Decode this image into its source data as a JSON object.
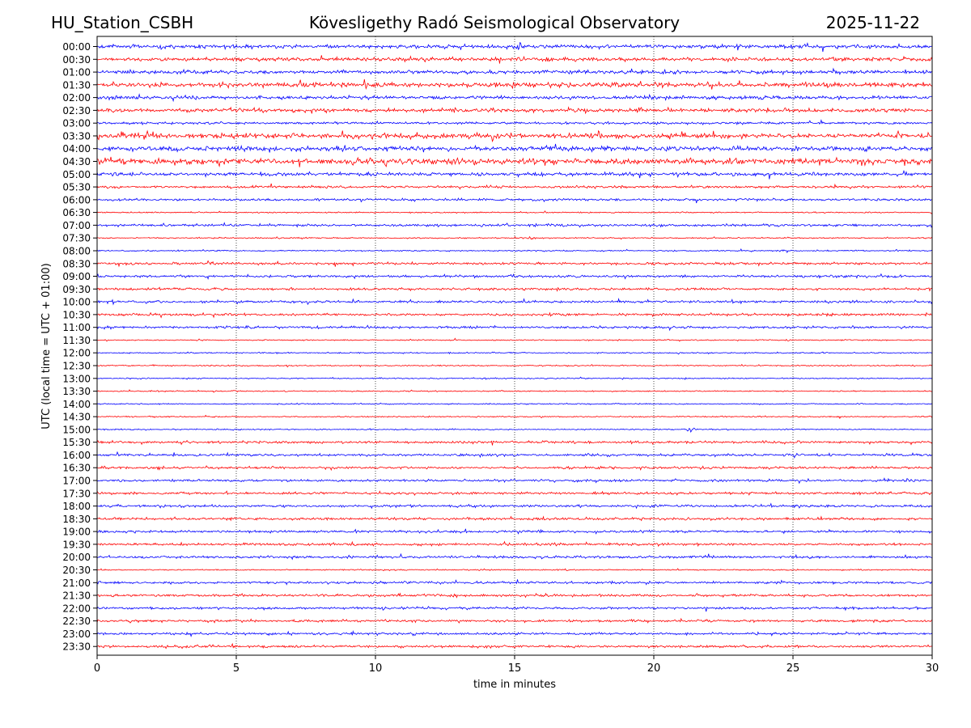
{
  "header": {
    "station": "HU_Station_CSBH",
    "observatory": "Kövesligethy Radó Seismological Observatory",
    "date": "2025-11-22"
  },
  "chart_data": {
    "type": "line",
    "title": "Kövesligethy Radó Seismological Observatory",
    "xlabel": "time in minutes",
    "ylabel": "UTC (local time = UTC + 01:00)",
    "xlim": [
      0,
      30
    ],
    "xticks": [
      0,
      5,
      10,
      15,
      20,
      25,
      30
    ],
    "xtick_labels": [
      "0",
      "5",
      "10",
      "15",
      "20",
      "25",
      "30"
    ],
    "grid": "vertical dotted lines at x = 5, 10, 15, 20, 25",
    "series_colors": [
      "#0000ff",
      "#ff0000"
    ],
    "trace_labels": [
      "00:00",
      "00:30",
      "01:00",
      "01:30",
      "02:00",
      "02:30",
      "03:00",
      "03:30",
      "04:00",
      "04:30",
      "05:00",
      "05:30",
      "06:00",
      "06:30",
      "07:00",
      "07:30",
      "08:00",
      "08:30",
      "09:00",
      "09:30",
      "10:00",
      "10:30",
      "11:00",
      "11:30",
      "12:00",
      "12:30",
      "13:00",
      "13:30",
      "14:00",
      "14:30",
      "15:00",
      "15:30",
      "16:00",
      "16:30",
      "17:00",
      "17:30",
      "18:00",
      "18:30",
      "19:00",
      "19:30",
      "20:00",
      "20:30",
      "21:00",
      "21:30",
      "22:00",
      "22:30",
      "23:00",
      "23:30"
    ],
    "noise_level": [
      3,
      3,
      3,
      4,
      3,
      3,
      2,
      4,
      4,
      5,
      3,
      2,
      2,
      1,
      2,
      1,
      1,
      2,
      2,
      2,
      2,
      2,
      2,
      1,
      1,
      1,
      1,
      1,
      1,
      1,
      1,
      2,
      2,
      2,
      2,
      2,
      2,
      2,
      2,
      2,
      2,
      1,
      2,
      2,
      2,
      2,
      2,
      2
    ],
    "events": [
      {
        "trace": "00:00",
        "minute": 2.7,
        "amp": 5
      },
      {
        "trace": "00:00",
        "minute": 15.2,
        "amp": 7
      },
      {
        "trace": "00:00",
        "minute": 23.1,
        "amp": 5
      },
      {
        "trace": "00:00",
        "minute": 27.8,
        "amp": 4
      },
      {
        "trace": "00:30",
        "minute": 11.3,
        "amp": 4
      },
      {
        "trace": "00:30",
        "minute": 17.2,
        "amp": 5
      },
      {
        "trace": "00:30",
        "minute": 19.0,
        "amp": 5
      },
      {
        "trace": "01:00",
        "minute": 14.5,
        "amp": 4
      },
      {
        "trace": "01:00",
        "minute": 29.8,
        "amp": 4
      },
      {
        "trace": "01:30",
        "minute": 1.9,
        "amp": 5
      },
      {
        "trace": "01:30",
        "minute": 7.5,
        "amp": 5
      },
      {
        "trace": "01:30",
        "minute": 16.6,
        "amp": 6
      },
      {
        "trace": "01:30",
        "minute": 20.3,
        "amp": 6
      },
      {
        "trace": "01:30",
        "minute": 30.0,
        "amp": 5
      },
      {
        "trace": "02:00",
        "minute": 9.0,
        "amp": 4
      },
      {
        "trace": "02:00",
        "minute": 25.9,
        "amp": 4
      },
      {
        "trace": "02:30",
        "minute": 1.6,
        "amp": 5
      },
      {
        "trace": "02:30",
        "minute": 6.0,
        "amp": 4
      },
      {
        "trace": "02:30",
        "minute": 21.0,
        "amp": 4
      },
      {
        "trace": "03:00",
        "minute": 25.6,
        "amp": 4
      },
      {
        "trace": "03:30",
        "minute": 0.9,
        "amp": 12
      },
      {
        "trace": "03:30",
        "minute": 1.8,
        "amp": 6
      },
      {
        "trace": "03:30",
        "minute": 7.0,
        "amp": 6
      },
      {
        "trace": "03:30",
        "minute": 9.2,
        "amp": 6
      },
      {
        "trace": "03:30",
        "minute": 14.2,
        "amp": 8
      },
      {
        "trace": "03:30",
        "minute": 29.9,
        "amp": 6
      },
      {
        "trace": "04:00",
        "minute": 0.2,
        "amp": 5
      },
      {
        "trace": "04:00",
        "minute": 5.0,
        "amp": 5
      },
      {
        "trace": "04:00",
        "minute": 7.2,
        "amp": 5
      },
      {
        "trace": "04:00",
        "minute": 16.9,
        "amp": 6
      },
      {
        "trace": "04:00",
        "minute": 18.0,
        "amp": 5
      },
      {
        "trace": "04:00",
        "minute": 25.1,
        "amp": 6
      },
      {
        "trace": "04:30",
        "minute": 2.7,
        "amp": 6
      },
      {
        "trace": "04:30",
        "minute": 4.4,
        "amp": 7
      },
      {
        "trace": "04:30",
        "minute": 5.5,
        "amp": 8
      },
      {
        "trace": "04:30",
        "minute": 20.4,
        "amp": 5
      },
      {
        "trace": "05:00",
        "minute": 19.5,
        "amp": 6
      },
      {
        "trace": "05:00",
        "minute": 25.7,
        "amp": 4
      },
      {
        "trace": "05:30",
        "minute": 23.7,
        "amp": 3
      },
      {
        "trace": "06:00",
        "minute": 1.5,
        "amp": 4
      },
      {
        "trace": "07:00",
        "minute": 29.9,
        "amp": 4
      },
      {
        "trace": "07:30",
        "minute": 15.6,
        "amp": 3
      },
      {
        "trace": "08:30",
        "minute": 4.1,
        "amp": 4
      },
      {
        "trace": "08:30",
        "minute": 16.7,
        "amp": 4
      },
      {
        "trace": "08:30",
        "minute": 20.0,
        "amp": 4
      },
      {
        "trace": "09:00",
        "minute": 4.0,
        "amp": 4
      },
      {
        "trace": "09:30",
        "minute": 16.6,
        "amp": 4
      },
      {
        "trace": "10:00",
        "minute": 11.5,
        "amp": 3
      },
      {
        "trace": "11:00",
        "minute": 5.3,
        "amp": 4
      },
      {
        "trace": "15:00",
        "minute": 21.3,
        "amp": 5
      },
      {
        "trace": "15:30",
        "minute": 20.5,
        "amp": 3
      },
      {
        "trace": "16:00",
        "minute": 4.7,
        "amp": 4
      },
      {
        "trace": "17:00",
        "minute": 25.5,
        "amp": 3
      },
      {
        "trace": "17:30",
        "minute": 8.0,
        "amp": 4
      },
      {
        "trace": "17:30",
        "minute": 23.5,
        "amp": 3
      },
      {
        "trace": "17:30",
        "minute": 29.0,
        "amp": 3
      },
      {
        "trace": "18:00",
        "minute": 17.3,
        "amp": 4
      },
      {
        "trace": "18:30",
        "minute": 13.8,
        "amp": 3
      },
      {
        "trace": "18:30",
        "minute": 21.2,
        "amp": 4
      },
      {
        "trace": "19:30",
        "minute": 9.2,
        "amp": 5
      },
      {
        "trace": "20:00",
        "minute": 16.2,
        "amp": 4
      },
      {
        "trace": "21:00",
        "minute": 29.5,
        "amp": 3
      },
      {
        "trace": "21:30",
        "minute": 23.5,
        "amp": 3
      },
      {
        "trace": "23:00",
        "minute": 9.2,
        "amp": 5
      },
      {
        "trace": "23:00",
        "minute": 11.3,
        "amp": 5
      },
      {
        "trace": "23:30",
        "minute": 6.0,
        "amp": 3
      }
    ]
  }
}
